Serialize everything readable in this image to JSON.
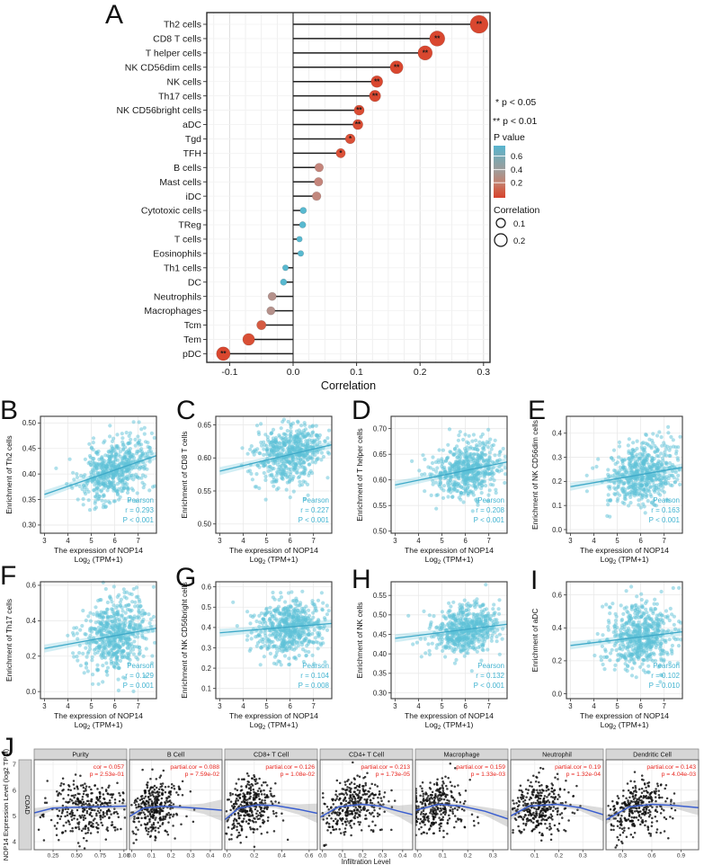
{
  "chart_data": [
    {
      "type": "lollipop",
      "label": "A",
      "xlabel": "Correlation",
      "x_ticks": [
        "-0.1",
        "0.0",
        "0.1",
        "0.2",
        "0.3"
      ],
      "x_tick_vals": [
        -0.1,
        0.0,
        0.1,
        0.2,
        0.3
      ],
      "xlim": [
        -0.135,
        0.31
      ],
      "legend": {
        "sig1": "* p < 0.05",
        "sig2": "** p < 0.01",
        "pvalue_title": "P value",
        "pvalue_ticks": [
          "0.6",
          "0.4",
          "0.2"
        ],
        "colorbar_top": "#58b5cf",
        "colorbar_mid": "#a39a96",
        "colorbar_bottom": "#d6432e",
        "size_title": "Correlation",
        "size_ticks": [
          "0.1",
          "0.2"
        ]
      },
      "rows": [
        {
          "label": "Th2 cells",
          "corr": 0.293,
          "sig": "**",
          "color": "#d9472f",
          "r": 10
        },
        {
          "label": "CD8 T cells",
          "corr": 0.227,
          "sig": "**",
          "color": "#d9472f",
          "r": 8.5
        },
        {
          "label": "T helper cells",
          "corr": 0.208,
          "sig": "**",
          "color": "#d9472f",
          "r": 8
        },
        {
          "label": "NK CD56dim cells",
          "corr": 0.163,
          "sig": "**",
          "color": "#d9472f",
          "r": 7.2
        },
        {
          "label": "NK cells",
          "corr": 0.132,
          "sig": "**",
          "color": "#d9472f",
          "r": 6.5
        },
        {
          "label": "Th17 cells",
          "corr": 0.129,
          "sig": "**",
          "color": "#d9472f",
          "r": 6.3
        },
        {
          "label": "NK CD56bright cells",
          "corr": 0.104,
          "sig": "**",
          "color": "#da4c33",
          "r": 5.6
        },
        {
          "label": "aDC",
          "corr": 0.102,
          "sig": "**",
          "color": "#da4c33",
          "r": 5.6
        },
        {
          "label": "Tgd",
          "corr": 0.09,
          "sig": "*",
          "color": "#db5138",
          "r": 5.4
        },
        {
          "label": "TFH",
          "corr": 0.075,
          "sig": "*",
          "color": "#db5138",
          "r": 5.2
        },
        {
          "label": "B cells",
          "corr": 0.041,
          "sig": "",
          "color": "#c5857b",
          "r": 4.8
        },
        {
          "label": "Mast cells",
          "corr": 0.04,
          "sig": "",
          "color": "#c5857b",
          "r": 4.8
        },
        {
          "label": "iDC",
          "corr": 0.037,
          "sig": "",
          "color": "#c2887e",
          "r": 4.9
        },
        {
          "label": "Cytotoxic cells",
          "corr": 0.016,
          "sig": "",
          "color": "#58b9d0",
          "r": 3.6
        },
        {
          "label": "TReg",
          "corr": 0.015,
          "sig": "",
          "color": "#58b9d0",
          "r": 3.6
        },
        {
          "label": "T cells",
          "corr": 0.01,
          "sig": "",
          "color": "#58b9d0",
          "r": 3.2
        },
        {
          "label": "Eosinophils",
          "corr": 0.012,
          "sig": "",
          "color": "#58b9d0",
          "r": 3.3
        },
        {
          "label": "Th1 cells",
          "corr": -0.012,
          "sig": "",
          "color": "#58b9d0",
          "r": 3.3
        },
        {
          "label": "DC",
          "corr": -0.015,
          "sig": "",
          "color": "#58b9d0",
          "r": 3.6
        },
        {
          "label": "Neutrophils",
          "corr": -0.033,
          "sig": "",
          "color": "#b5918b",
          "r": 4.6
        },
        {
          "label": "Macrophages",
          "corr": -0.035,
          "sig": "",
          "color": "#b5918b",
          "r": 4.6
        },
        {
          "label": "Tcm",
          "corr": -0.05,
          "sig": "",
          "color": "#d55b42",
          "r": 5.2
        },
        {
          "label": "Tem",
          "corr": -0.07,
          "sig": "",
          "color": "#d94f35",
          "r": 6.6
        },
        {
          "label": "pDC",
          "corr": -0.11,
          "sig": "**",
          "color": "#d9472f",
          "r": 7.6
        }
      ]
    },
    {
      "type": "scatter",
      "label": "B",
      "ylabel": "Enrichment of Th2 cells",
      "yticks": [
        "0.30",
        "0.35",
        "0.40",
        "0.45",
        "0.50"
      ],
      "ytickvals": [
        0.3,
        0.35,
        0.4,
        0.45,
        0.5
      ],
      "ylim": [
        0.284,
        0.513
      ],
      "trend": [
        0.36,
        0.436
      ],
      "sd": 0.03,
      "stats": [
        "Pearson",
        "r = 0.293",
        "P < 0.001"
      ],
      "seed": 11
    },
    {
      "type": "scatter",
      "label": "C",
      "ylabel": "Enrichment of CD8 T cells",
      "yticks": [
        "0.50",
        "0.55",
        "0.60",
        "0.65"
      ],
      "ytickvals": [
        0.5,
        0.55,
        0.6,
        0.65
      ],
      "ylim": [
        0.486,
        0.663
      ],
      "trend": [
        0.58,
        0.62
      ],
      "sd": 0.022,
      "stats": [
        "Pearson",
        "r = 0.227",
        "P < 0.001"
      ],
      "seed": 22
    },
    {
      "type": "scatter",
      "label": "D",
      "ylabel": "Enrichment of T helper cells",
      "yticks": [
        "0.50",
        "0.55",
        "0.60",
        "0.65",
        "0.70"
      ],
      "ytickvals": [
        0.5,
        0.55,
        0.6,
        0.65,
        0.7
      ],
      "ylim": [
        0.496,
        0.724
      ],
      "trend": [
        0.59,
        0.635
      ],
      "sd": 0.027,
      "stats": [
        "Pearson",
        "r = 0.208",
        "P < 0.001"
      ],
      "seed": 33
    },
    {
      "type": "scatter",
      "label": "E",
      "ylabel": "Enrichment of NK CD56dim cells",
      "yticks": [
        "0.0",
        "0.1",
        "0.2",
        "0.3",
        "0.4"
      ],
      "ytickvals": [
        0.0,
        0.1,
        0.2,
        0.3,
        0.4
      ],
      "ylim": [
        -0.015,
        0.47
      ],
      "trend": [
        0.178,
        0.258
      ],
      "sd": 0.065,
      "stats": [
        "Pearson",
        "r = 0.163",
        "P < 0.001"
      ],
      "seed": 44
    },
    {
      "type": "scatter",
      "label": "F",
      "ylabel": "Enrichment of Th17 cells",
      "yticks": [
        "0.0",
        "0.2",
        "0.4",
        "0.6"
      ],
      "ytickvals": [
        0.0,
        0.2,
        0.4,
        0.6
      ],
      "ylim": [
        -0.04,
        0.62
      ],
      "trend": [
        0.243,
        0.358
      ],
      "sd": 0.105,
      "stats": [
        "Pearson",
        "r = 0.129",
        "P = 0.001"
      ],
      "seed": 55
    },
    {
      "type": "scatter",
      "label": "G",
      "ylabel": "Enrichment of NK CD56bright cells",
      "yticks": [
        "0.1",
        "0.2",
        "0.3",
        "0.4",
        "0.5",
        "0.6"
      ],
      "ytickvals": [
        0.1,
        0.2,
        0.3,
        0.4,
        0.5,
        0.6
      ],
      "ylim": [
        0.05,
        0.625
      ],
      "trend": [
        0.374,
        0.42
      ],
      "sd": 0.068,
      "stats": [
        "Pearson",
        "r = 0.104",
        "P = 0.008"
      ],
      "seed": 66
    },
    {
      "type": "scatter",
      "label": "H",
      "ylabel": "Enrichment of NK cells",
      "yticks": [
        "0.30",
        "0.35",
        "0.40",
        "0.45",
        "0.50",
        "0.55"
      ],
      "ytickvals": [
        0.3,
        0.35,
        0.4,
        0.45,
        0.5,
        0.55
      ],
      "ylim": [
        0.285,
        0.585
      ],
      "trend": [
        0.44,
        0.476
      ],
      "sd": 0.031,
      "stats": [
        "Pearson",
        "r = 0.132",
        "P < 0.001"
      ],
      "seed": 77
    },
    {
      "type": "scatter",
      "label": "I",
      "ylabel": "Enrichment of aDC",
      "yticks": [
        "0.0",
        "0.2",
        "0.4",
        "0.6"
      ],
      "ytickvals": [
        0.0,
        0.2,
        0.4,
        0.6
      ],
      "ylim": [
        -0.03,
        0.68
      ],
      "trend": [
        0.293,
        0.376
      ],
      "sd": 0.098,
      "stats": [
        "Pearson",
        "r = 0.102",
        "P = 0.010"
      ],
      "seed": 88
    },
    {
      "type": "scatter-facet-row",
      "label": "J",
      "ylabel": "NOP14 Expression Level (log2 TPM)",
      "strip": "COAD",
      "xlabel": "Infiltration Level",
      "yticks": [
        "4",
        "5",
        "6",
        "7"
      ],
      "ytickvals": [
        4,
        5,
        6,
        7
      ],
      "point_color": "#0d0d0d",
      "line_color": "#3a5ed0",
      "stat_color": "#e8231c",
      "panels": [
        {
          "title": "Purity",
          "stat1": "cor = 0.057",
          "stat2": "p = 2.53e-01",
          "xlim": [
            0.05,
            1.03
          ],
          "xticks": [
            "0.25",
            "0.50",
            "0.75",
            "1.00"
          ],
          "xtickvals": [
            0.25,
            0.5,
            0.75,
            1.0
          ],
          "xmean": 0.62,
          "xsd": 0.22,
          "clampx": false,
          "curve": [
            [
              0,
              5.12
            ],
            [
              0.2,
              5.3
            ],
            [
              0.5,
              5.34
            ],
            [
              0.8,
              5.36
            ],
            [
              1,
              5.38
            ]
          ],
          "hw": [
            0.18,
            0.09,
            0.08,
            0.09,
            0.14
          ],
          "seed": 101
        },
        {
          "title": "B Cell",
          "stat1": "partial.cor = 0.088",
          "stat2": "p = 7.59e-02",
          "xlim": [
            -0.012,
            0.46
          ],
          "xticks": [
            "0.0",
            "0.1",
            "0.2",
            "0.3",
            "0.4"
          ],
          "xtickvals": [
            0.0,
            0.1,
            0.2,
            0.3,
            0.4
          ],
          "xmean": 0.11,
          "xsd": 0.07,
          "clampx": false,
          "curve": [
            [
              0,
              4.98
            ],
            [
              0.15,
              5.3
            ],
            [
              0.35,
              5.37
            ],
            [
              0.6,
              5.33
            ],
            [
              0.8,
              5.28
            ],
            [
              1,
              5.22
            ]
          ],
          "hw": [
            0.16,
            0.07,
            0.07,
            0.1,
            0.2,
            0.42
          ],
          "seed": 102
        },
        {
          "title": "CD8+ T Cell",
          "stat1": "partial.cor = 0.126",
          "stat2": "p = 1.08e-02",
          "xlim": [
            -0.015,
            0.66
          ],
          "xticks": [
            "0.0",
            "0.2",
            "0.4",
            "0.6"
          ],
          "xtickvals": [
            0.0,
            0.2,
            0.4,
            0.6
          ],
          "xmean": 0.16,
          "xsd": 0.09,
          "clampx": false,
          "curve": [
            [
              0,
              4.85
            ],
            [
              0.15,
              5.3
            ],
            [
              0.35,
              5.42
            ],
            [
              0.55,
              5.4
            ],
            [
              0.8,
              5.25
            ],
            [
              1,
              5.1
            ]
          ],
          "hw": [
            0.15,
            0.07,
            0.07,
            0.1,
            0.2,
            0.38
          ],
          "seed": 103
        },
        {
          "title": "CD4+ T Cell",
          "stat1": "partial.cor = 0.213",
          "stat2": "p = 1.73e-05",
          "xlim": [
            -0.012,
            0.45
          ],
          "xticks": [
            "0.0",
            "0.1",
            "0.2",
            "0.3",
            "0.4"
          ],
          "xtickvals": [
            0.0,
            0.1,
            0.2,
            0.3,
            0.4
          ],
          "xmean": 0.15,
          "xsd": 0.08,
          "clampx": false,
          "curve": [
            [
              0,
              4.95
            ],
            [
              0.2,
              5.35
            ],
            [
              0.45,
              5.45
            ],
            [
              0.65,
              5.38
            ],
            [
              0.85,
              5.18
            ],
            [
              1,
              5.05
            ]
          ],
          "hw": [
            0.14,
            0.07,
            0.07,
            0.1,
            0.22,
            0.4
          ],
          "seed": 104
        },
        {
          "title": "Macrophage",
          "stat1": "partial.cor = 0.159",
          "stat2": "p = 1.33e-03",
          "xlim": [
            -0.008,
            0.36
          ],
          "xticks": [
            "0.0",
            "0.1",
            "0.2",
            "0.3"
          ],
          "xtickvals": [
            0.0,
            0.1,
            0.2,
            0.3
          ],
          "xmean": 0.07,
          "xsd": 0.06,
          "clampx": true,
          "curve": [
            [
              0,
              5.22
            ],
            [
              0.25,
              5.45
            ],
            [
              0.5,
              5.38
            ],
            [
              0.75,
              5.18
            ],
            [
              1,
              4.88
            ]
          ],
          "hw": [
            0.1,
            0.07,
            0.09,
            0.16,
            0.32
          ],
          "seed": 105
        },
        {
          "title": "Neutrophil",
          "stat1": "partial.cor = 0.19",
          "stat2": "p = 1.32e-04",
          "xlim": [
            0.0,
            0.385
          ],
          "xticks": [
            "0.1",
            "0.2",
            "0.3"
          ],
          "xtickvals": [
            0.1,
            0.2,
            0.3
          ],
          "xmean": 0.12,
          "xsd": 0.06,
          "clampx": false,
          "curve": [
            [
              0,
              5.0
            ],
            [
              0.2,
              5.38
            ],
            [
              0.5,
              5.45
            ],
            [
              0.75,
              5.32
            ],
            [
              1,
              5.05
            ]
          ],
          "hw": [
            0.16,
            0.07,
            0.07,
            0.12,
            0.26
          ],
          "seed": 106
        },
        {
          "title": "Dendritic Cell",
          "stat1": "partial.cor = 0.143",
          "stat2": "p = 4.04e-03",
          "xlim": [
            0.13,
            1.08
          ],
          "xticks": [
            "0.3",
            "0.6",
            "0.9"
          ],
          "xtickvals": [
            0.3,
            0.6,
            0.9
          ],
          "xmean": 0.45,
          "xsd": 0.16,
          "clampx": false,
          "curve": [
            [
              0,
              4.85
            ],
            [
              0.25,
              5.35
            ],
            [
              0.5,
              5.45
            ],
            [
              0.75,
              5.4
            ],
            [
              1,
              5.32
            ]
          ],
          "hw": [
            0.18,
            0.08,
            0.08,
            0.12,
            0.3
          ],
          "seed": 107
        }
      ]
    }
  ],
  "scatter_shared": {
    "xlabel_line1": "The expression of NOP14",
    "xlabel_word1": "Log",
    "xlabel_sub": "2",
    "xlabel_word2": " (TPM+1)",
    "xticks": [
      "3",
      "4",
      "5",
      "6",
      "7"
    ],
    "xtickvals": [
      3,
      4,
      5,
      6,
      7
    ],
    "xlim": [
      2.83,
      7.78
    ],
    "point_color": "#5ec1d7",
    "line_color": "#3fa9c8",
    "stat_color": "#43b4d1"
  }
}
